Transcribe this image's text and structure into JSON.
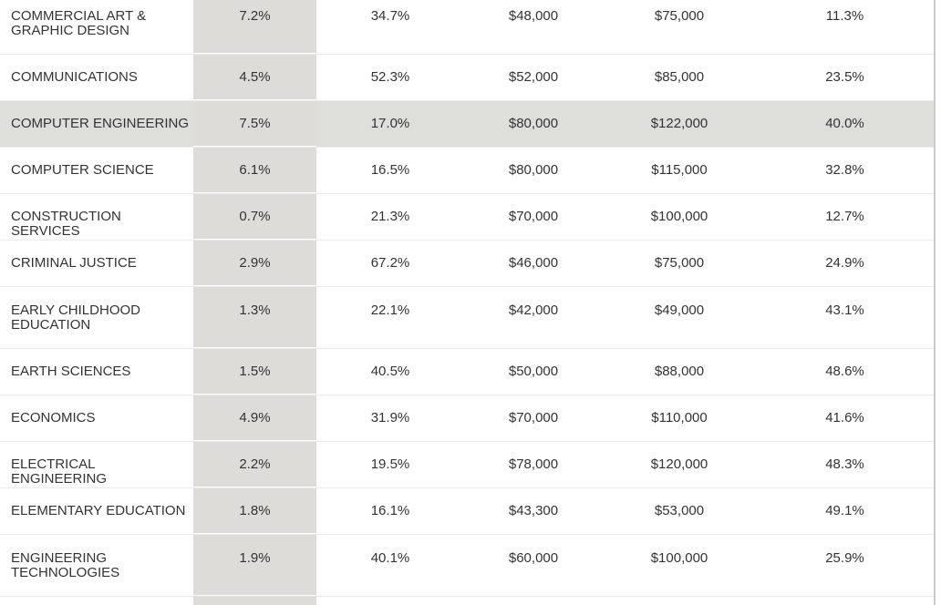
{
  "rows": [
    {
      "major": "COMMERCIAL ART & GRAPHIC DESIGN",
      "share": "7.2%",
      "grad": "34.7%",
      "start": "$48,000",
      "mid": "$75,000",
      "growth": "11.3%"
    },
    {
      "major": "COMMUNICATIONS",
      "share": "4.5%",
      "grad": "52.3%",
      "start": "$52,000",
      "mid": "$85,000",
      "growth": "23.5%"
    },
    {
      "major": "COMPUTER ENGINEERING",
      "share": "7.5%",
      "grad": "17.0%",
      "start": "$80,000",
      "mid": "$122,000",
      "growth": "40.0%"
    },
    {
      "major": "COMPUTER SCIENCE",
      "share": "6.1%",
      "grad": "16.5%",
      "start": "$80,000",
      "mid": "$115,000",
      "growth": "32.8%"
    },
    {
      "major": "CONSTRUCTION SERVICES",
      "share": "0.7%",
      "grad": "21.3%",
      "start": "$70,000",
      "mid": "$100,000",
      "growth": "12.7%"
    },
    {
      "major": "CRIMINAL JUSTICE",
      "share": "2.9%",
      "grad": "67.2%",
      "start": "$46,000",
      "mid": "$75,000",
      "growth": "24.9%"
    },
    {
      "major": "EARLY CHILDHOOD EDUCATION",
      "share": "1.3%",
      "grad": "22.1%",
      "start": "$42,000",
      "mid": "$49,000",
      "growth": "43.1%"
    },
    {
      "major": "EARTH SCIENCES",
      "share": "1.5%",
      "grad": "40.5%",
      "start": "$50,000",
      "mid": "$88,000",
      "growth": "48.6%"
    },
    {
      "major": "ECONOMICS",
      "share": "4.9%",
      "grad": "31.9%",
      "start": "$70,000",
      "mid": "$110,000",
      "growth": "41.6%"
    },
    {
      "major": "ELECTRICAL ENGINEERING",
      "share": "2.2%",
      "grad": "19.5%",
      "start": "$78,000",
      "mid": "$120,000",
      "growth": "48.3%"
    },
    {
      "major": "ELEMENTARY EDUCATION",
      "share": "1.8%",
      "grad": "16.1%",
      "start": "$43,300",
      "mid": "$53,000",
      "growth": "49.1%"
    },
    {
      "major": "ENGINEERING TECHNOLOGIES",
      "share": "1.9%",
      "grad": "40.1%",
      "start": "$60,000",
      "mid": "$100,000",
      "growth": "25.9%"
    }
  ]
}
